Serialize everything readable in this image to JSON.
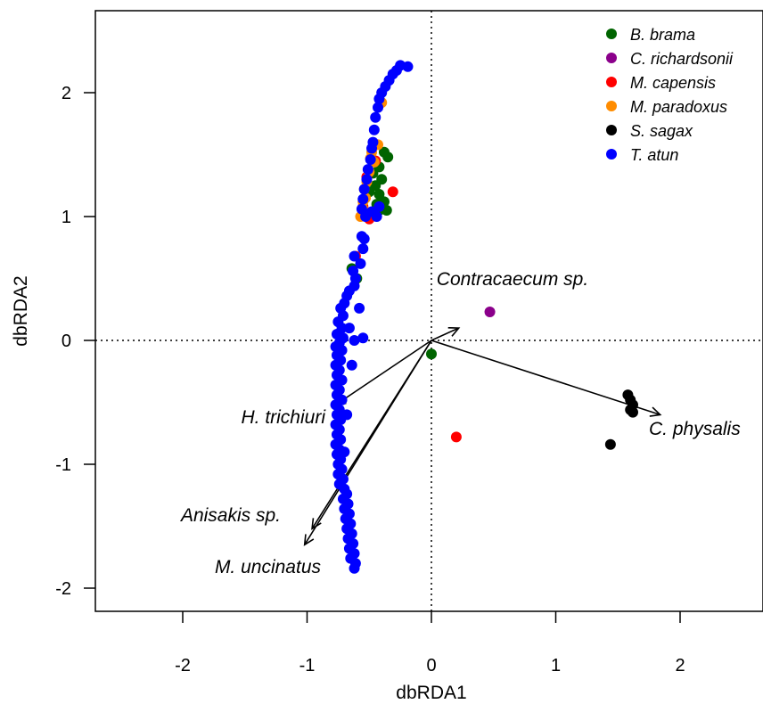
{
  "chart_data": {
    "type": "scatter",
    "title": "",
    "xlabel": "dbRDA1",
    "ylabel": "dbRDA2",
    "xlim": [
      -2.7,
      2.65
    ],
    "ylim": [
      -2.2,
      2.65
    ],
    "xticks": [
      -2,
      -1,
      0,
      1,
      2
    ],
    "yticks": [
      -2,
      -1,
      0,
      1,
      2
    ],
    "reference_lines": {
      "x": 0,
      "y": 0,
      "style": "dotted"
    },
    "legend": {
      "position": "top-right"
    },
    "series": [
      {
        "name": "B. brama",
        "color": "#006400",
        "points": [
          [
            -0.38,
            1.52
          ],
          [
            -0.35,
            1.48
          ],
          [
            -0.42,
            1.4
          ],
          [
            -0.4,
            1.3
          ],
          [
            -0.45,
            1.25
          ],
          [
            -0.42,
            1.18
          ],
          [
            -0.38,
            1.12
          ],
          [
            -0.42,
            1.05
          ],
          [
            -0.46,
            1.02
          ],
          [
            -0.36,
            1.05
          ],
          [
            -0.44,
            1.1
          ],
          [
            -0.5,
            1.2
          ],
          [
            -0.47,
            1.35
          ],
          [
            -0.64,
            0.58
          ],
          [
            -0.6,
            0.5
          ],
          [
            0.0,
            -0.11
          ]
        ]
      },
      {
        "name": "C. richardsonii",
        "color": "#8B008B",
        "points": [
          [
            0.47,
            0.23
          ]
        ]
      },
      {
        "name": "M. capensis",
        "color": "#FF0000",
        "points": [
          [
            -0.31,
            1.2
          ],
          [
            -0.45,
            1.45
          ],
          [
            -0.52,
            1.32
          ],
          [
            -0.55,
            1.08
          ],
          [
            -0.5,
            0.98
          ],
          [
            -0.61,
            0.68
          ],
          [
            0.2,
            -0.78
          ]
        ]
      },
      {
        "name": "M. paradoxus",
        "color": "#FF8C00",
        "points": [
          [
            -0.4,
            1.92
          ],
          [
            -0.43,
            1.58
          ],
          [
            -0.48,
            1.52
          ],
          [
            -0.46,
            1.44
          ],
          [
            -0.5,
            1.36
          ],
          [
            -0.52,
            1.28
          ],
          [
            -0.54,
            1.22
          ],
          [
            -0.53,
            1.15
          ],
          [
            -0.55,
            1.06
          ],
          [
            -0.57,
            1.0
          ],
          [
            -0.55,
            1.12
          ],
          [
            -0.49,
            1.47
          ]
        ]
      },
      {
        "name": "S. sagax",
        "color": "#000000",
        "points": [
          [
            1.58,
            -0.44
          ],
          [
            1.6,
            -0.48
          ],
          [
            1.62,
            -0.52
          ],
          [
            1.6,
            -0.56
          ],
          [
            1.62,
            -0.58
          ],
          [
            1.44,
            -0.84
          ]
        ]
      },
      {
        "name": "T. atun",
        "color": "#0000FF",
        "points": [
          [
            -0.19,
            2.21
          ],
          [
            -0.25,
            2.22
          ],
          [
            -0.28,
            2.18
          ],
          [
            -0.31,
            2.15
          ],
          [
            -0.34,
            2.1
          ],
          [
            -0.37,
            2.05
          ],
          [
            -0.4,
            2.0
          ],
          [
            -0.42,
            1.95
          ],
          [
            -0.43,
            1.88
          ],
          [
            -0.45,
            1.8
          ],
          [
            -0.46,
            1.7
          ],
          [
            -0.47,
            1.6
          ],
          [
            -0.48,
            1.55
          ],
          [
            -0.49,
            1.46
          ],
          [
            -0.51,
            1.38
          ],
          [
            -0.52,
            1.3
          ],
          [
            -0.54,
            1.22
          ],
          [
            -0.55,
            1.14
          ],
          [
            -0.56,
            1.06
          ],
          [
            -0.53,
            1.0
          ],
          [
            -0.48,
            1.04
          ],
          [
            -0.44,
            1.0
          ],
          [
            -0.42,
            1.08
          ],
          [
            -0.56,
            0.84
          ],
          [
            -0.54,
            0.82
          ],
          [
            -0.55,
            0.74
          ],
          [
            -0.57,
            0.62
          ],
          [
            -0.62,
            0.68
          ],
          [
            -0.63,
            0.56
          ],
          [
            -0.61,
            0.5
          ],
          [
            -0.62,
            0.44
          ],
          [
            -0.66,
            0.4
          ],
          [
            -0.68,
            0.36
          ],
          [
            -0.7,
            0.3
          ],
          [
            -0.73,
            0.26
          ],
          [
            -0.71,
            0.2
          ],
          [
            -0.75,
            0.15
          ],
          [
            -0.72,
            0.1
          ],
          [
            -0.76,
            0.05
          ],
          [
            -0.71,
            0.02
          ],
          [
            -0.74,
            -0.02
          ],
          [
            -0.77,
            -0.05
          ],
          [
            -0.72,
            -0.08
          ],
          [
            -0.76,
            -0.12
          ],
          [
            -0.73,
            -0.16
          ],
          [
            -0.77,
            -0.2
          ],
          [
            -0.74,
            -0.24
          ],
          [
            -0.76,
            -0.28
          ],
          [
            -0.72,
            -0.32
          ],
          [
            -0.77,
            -0.36
          ],
          [
            -0.74,
            -0.4
          ],
          [
            -0.76,
            -0.44
          ],
          [
            -0.72,
            -0.48
          ],
          [
            -0.77,
            -0.52
          ],
          [
            -0.74,
            -0.56
          ],
          [
            -0.76,
            -0.6
          ],
          [
            -0.73,
            -0.64
          ],
          [
            -0.77,
            -0.68
          ],
          [
            -0.74,
            -0.72
          ],
          [
            -0.76,
            -0.76
          ],
          [
            -0.73,
            -0.8
          ],
          [
            -0.77,
            -0.84
          ],
          [
            -0.74,
            -0.88
          ],
          [
            -0.76,
            -0.92
          ],
          [
            -0.73,
            -0.96
          ],
          [
            -0.75,
            -1.0
          ],
          [
            -0.72,
            -1.04
          ],
          [
            -0.75,
            -1.08
          ],
          [
            -0.71,
            -1.12
          ],
          [
            -0.74,
            -1.16
          ],
          [
            -0.7,
            -1.2
          ],
          [
            -0.68,
            -1.24
          ],
          [
            -0.71,
            -1.28
          ],
          [
            -0.67,
            -1.32
          ],
          [
            -0.7,
            -1.36
          ],
          [
            -0.66,
            -1.4
          ],
          [
            -0.69,
            -1.44
          ],
          [
            -0.65,
            -1.48
          ],
          [
            -0.68,
            -1.52
          ],
          [
            -0.64,
            -1.56
          ],
          [
            -0.67,
            -1.6
          ],
          [
            -0.63,
            -1.64
          ],
          [
            -0.66,
            -1.68
          ],
          [
            -0.62,
            -1.72
          ],
          [
            -0.65,
            -1.76
          ],
          [
            -0.61,
            -1.8
          ],
          [
            -0.62,
            -1.84
          ],
          [
            -0.66,
            0.1
          ],
          [
            -0.64,
            -0.2
          ],
          [
            -0.68,
            -0.6
          ],
          [
            -0.7,
            -0.9
          ],
          [
            -0.62,
            0.0
          ],
          [
            -0.55,
            0.02
          ],
          [
            -0.58,
            0.26
          ]
        ]
      }
    ],
    "arrows": [
      {
        "label": "Contracaecum sp.",
        "end": [
          0.22,
          0.1
        ]
      },
      {
        "label": "C. physalis",
        "end": [
          1.84,
          -0.6
        ]
      },
      {
        "label": "H. trichiuri",
        "end": [
          -0.77,
          -0.52
        ]
      },
      {
        "label": "Anisakis sp.",
        "end": [
          -0.96,
          -1.52
        ]
      },
      {
        "label": "M. uncinatus",
        "end": [
          -1.02,
          -1.65
        ]
      }
    ]
  }
}
